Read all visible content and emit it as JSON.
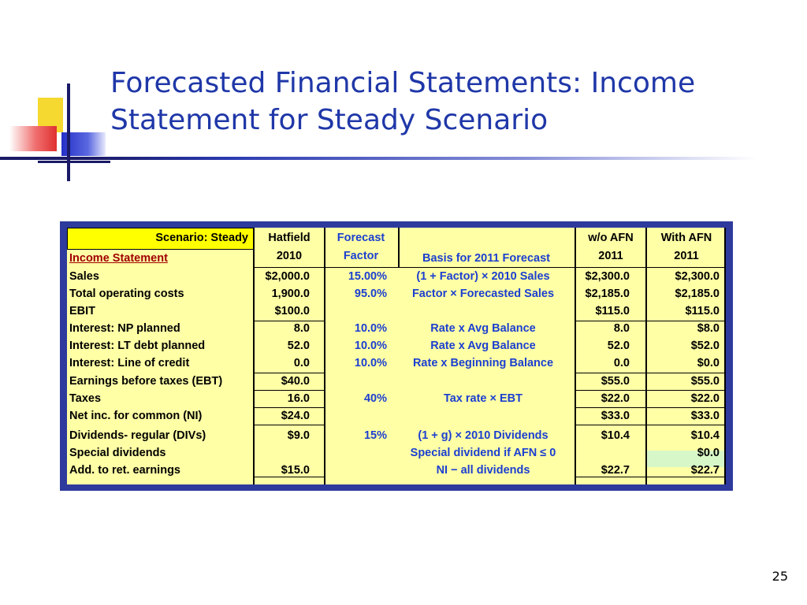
{
  "slide": {
    "title": "Forecasted Financial Statements: Income Statement for Steady Scenario",
    "page_number": "25"
  },
  "table": {
    "header": {
      "scenario": "Scenario: Steady",
      "section": "Income Statement",
      "hatfield_1": "Hatfield",
      "hatfield_2": "2010",
      "forecast_1": "Forecast",
      "forecast_2": "Factor",
      "basis": "Basis for 2011 Forecast",
      "wo_afn_1": "w/o AFN",
      "wo_afn_2": "2011",
      "with_afn_1": "With AFN",
      "with_afn_2": "2011"
    },
    "rows": [
      {
        "label": "Sales",
        "hatfield": "$2,000.0",
        "factor": "15.00%",
        "basis": "(1 + Factor) × 2010 Sales",
        "wo_afn": "$2,300.0",
        "with_afn": "$2,300.0"
      },
      {
        "label": "Total operating costs",
        "hatfield": "1,900.0",
        "factor": "95.0%",
        "basis": "Factor × Forecasted Sales",
        "wo_afn": "$2,185.0",
        "with_afn": "$2,185.0"
      },
      {
        "label": "EBIT",
        "hatfield": "$100.0",
        "factor": "",
        "basis": "",
        "wo_afn": "$115.0",
        "with_afn": "$115.0"
      },
      {
        "label": "Interest: NP planned",
        "hatfield": "8.0",
        "factor": "10.0%",
        "basis": "Rate x Avg Balance",
        "wo_afn": "8.0",
        "with_afn": "$8.0"
      },
      {
        "label": "Interest: LT debt planned",
        "hatfield": "52.0",
        "factor": "10.0%",
        "basis": "Rate x Avg Balance",
        "wo_afn": "52.0",
        "with_afn": "$52.0"
      },
      {
        "label": "Interest: Line of credit",
        "hatfield": "0.0",
        "factor": "10.0%",
        "basis": "Rate x Beginning Balance",
        "wo_afn": "0.0",
        "with_afn": "$0.0"
      },
      {
        "label": "Earnings before taxes (EBT)",
        "hatfield": "$40.0",
        "factor": "",
        "basis": "",
        "wo_afn": "$55.0",
        "with_afn": "$55.0"
      },
      {
        "label": "Taxes",
        "hatfield": "16.0",
        "factor": "40%",
        "basis": "Tax rate ×  EBT",
        "wo_afn": "$22.0",
        "with_afn": "$22.0"
      },
      {
        "label": "Net inc. for common  (NI)",
        "hatfield": "$24.0",
        "factor": "",
        "basis": "",
        "wo_afn": "$33.0",
        "with_afn": "$33.0"
      },
      {
        "label": "Dividends- regular (DIVs)",
        "hatfield": "$9.0",
        "factor": "15%",
        "basis": "(1 + g) × 2010 Dividends",
        "wo_afn": "$10.4",
        "with_afn": "$10.4"
      },
      {
        "label": "Special dividends",
        "hatfield": "",
        "factor": "",
        "basis": "Special dividend if AFN ≤ 0",
        "wo_afn": "",
        "with_afn": "$0.0"
      },
      {
        "label": "Add. to ret. earnings",
        "hatfield": "$15.0",
        "factor": "",
        "basis": "NI − all dividends",
        "wo_afn": "$22.7",
        "with_afn": "$22.7"
      }
    ]
  },
  "colors": {
    "title": "#1f37a8",
    "panel_border": "#2e3a9c",
    "sheet_fill": "#ffffa6",
    "header_yellow": "#ffff00",
    "formula_blue": "#1c3fd0",
    "highlight_green": "#d8f7c8"
  }
}
